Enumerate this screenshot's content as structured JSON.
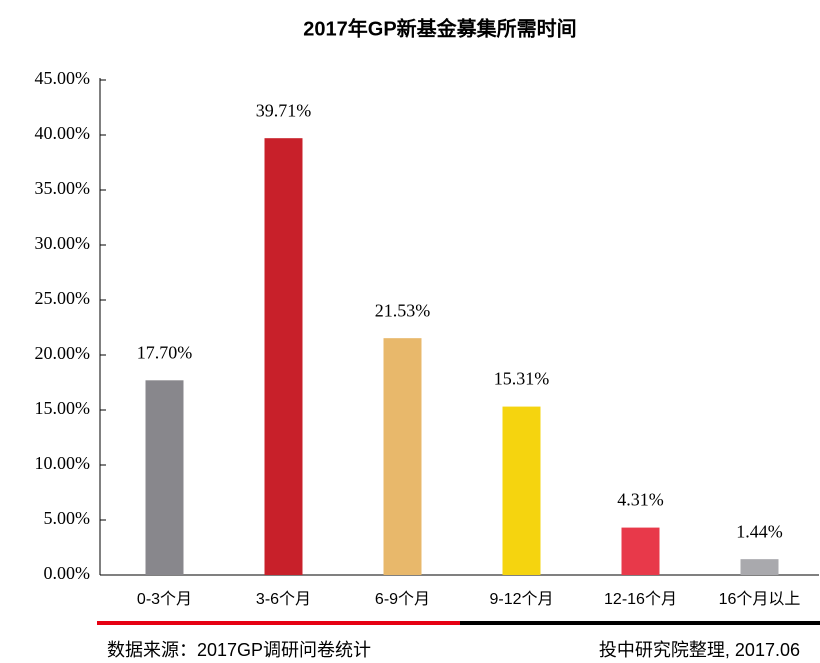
{
  "chart_data": {
    "type": "bar",
    "title": "2017年GP新基金募集所需时间",
    "categories": [
      "0-3个月",
      "3-6个月",
      "6-9个月",
      "9-12个月",
      "12-16个月",
      "16个月以上"
    ],
    "values": [
      17.7,
      39.71,
      21.53,
      15.31,
      4.31,
      1.44
    ],
    "value_labels": [
      "17.70%",
      "39.71%",
      "21.53%",
      "15.31%",
      "4.31%",
      "1.44%"
    ],
    "colors": [
      "#88878c",
      "#c8202a",
      "#e8b86b",
      "#f5d40f",
      "#e8394a",
      "#a9a9ad"
    ],
    "ylim": [
      0,
      45
    ],
    "yticks": [
      {
        "value": 0,
        "label": "0.00%"
      },
      {
        "value": 5,
        "label": "5.00%"
      },
      {
        "value": 10,
        "label": "10.00%"
      },
      {
        "value": 15,
        "label": "15.00%"
      },
      {
        "value": 20,
        "label": "20.00%"
      },
      {
        "value": 25,
        "label": "25.00%"
      },
      {
        "value": 30,
        "label": "30.00%"
      },
      {
        "value": 35,
        "label": "35.00%"
      },
      {
        "value": 40,
        "label": "40.00%"
      },
      {
        "value": 45,
        "label": "45.00%"
      }
    ],
    "grid": false,
    "notes": [
      "数据来源：2017GP调研问卷统计",
      "投中研究院整理, 2017.06"
    ]
  }
}
